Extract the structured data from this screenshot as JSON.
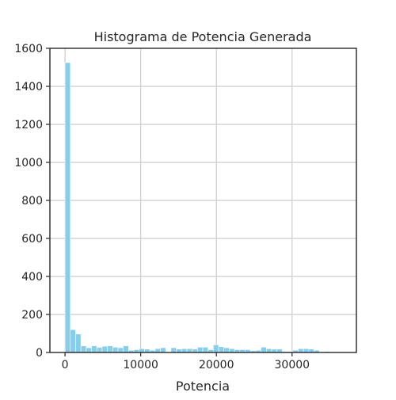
{
  "chart_data": {
    "type": "bar",
    "subtype": "histogram",
    "title": "Histograma de Potencia Generada",
    "xlabel": "Potencia",
    "ylabel": "",
    "xlim": [
      -2000,
      38500
    ],
    "ylim": [
      0,
      1600
    ],
    "xticks": [
      0,
      10000,
      20000,
      30000
    ],
    "xtick_labels": [
      "0",
      "10000",
      "20000",
      "30000"
    ],
    "yticks": [
      0,
      200,
      400,
      600,
      800,
      1000,
      1200,
      1400,
      1600
    ],
    "ytick_labels": [
      "0",
      "200",
      "400",
      "600",
      "800",
      "1000",
      "1200",
      "1400",
      "1600"
    ],
    "grid": true,
    "bar_color": "#87ceeb",
    "bin_start": 0,
    "bin_width": 700,
    "values": [
      1525,
      120,
      97,
      35,
      25,
      35,
      27,
      33,
      35,
      28,
      25,
      35,
      12,
      15,
      20,
      18,
      12,
      20,
      25,
      0,
      25,
      18,
      20,
      20,
      18,
      28,
      28,
      15,
      40,
      30,
      25,
      20,
      15,
      15,
      15,
      10,
      12,
      28,
      20,
      18,
      18,
      5,
      5,
      12,
      20,
      20,
      18,
      12,
      0,
      5
    ]
  }
}
